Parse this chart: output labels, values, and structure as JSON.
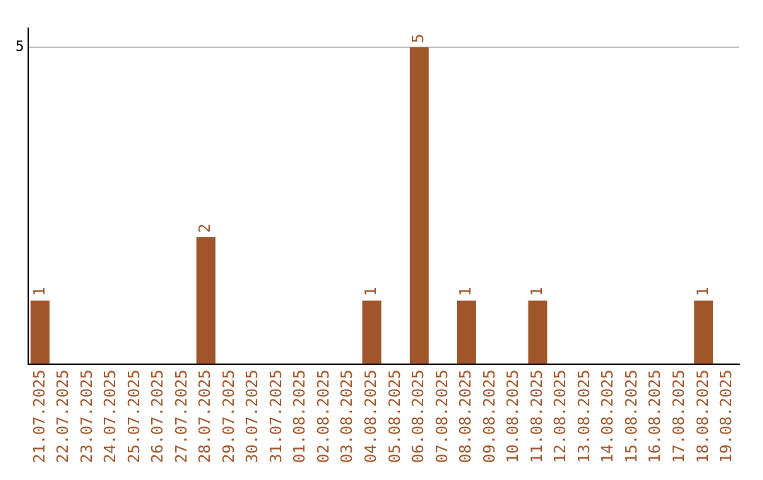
{
  "chart_data": {
    "type": "bar",
    "categories": [
      "21.07.2025",
      "22.07.2025",
      "23.07.2025",
      "24.07.2025",
      "25.07.2025",
      "26.07.2025",
      "27.07.2025",
      "28.07.2025",
      "29.07.2025",
      "30.07.2025",
      "31.07.2025",
      "01.08.2025",
      "02.08.2025",
      "03.08.2025",
      "04.08.2025",
      "05.08.2025",
      "06.08.2025",
      "07.08.2025",
      "08.08.2025",
      "09.08.2025",
      "10.08.2025",
      "11.08.2025",
      "12.08.2025",
      "13.08.2025",
      "14.08.2025",
      "15.08.2025",
      "16.08.2025",
      "17.08.2025",
      "18.08.2025",
      "19.08.2025"
    ],
    "values": [
      1,
      0,
      0,
      0,
      0,
      0,
      0,
      2,
      0,
      0,
      0,
      0,
      0,
      0,
      1,
      0,
      5,
      0,
      1,
      0,
      0,
      1,
      0,
      0,
      0,
      0,
      0,
      0,
      1,
      0
    ],
    "value_labels": [
      "1",
      null,
      null,
      null,
      null,
      null,
      null,
      "2",
      null,
      null,
      null,
      null,
      null,
      null,
      "1",
      null,
      "5",
      null,
      "1",
      null,
      null,
      "1",
      null,
      null,
      null,
      null,
      null,
      null,
      "1",
      null
    ],
    "color": "#a0562a",
    "ylim": [
      0,
      5.3
    ],
    "yticks": [
      5
    ],
    "grid": "y"
  }
}
